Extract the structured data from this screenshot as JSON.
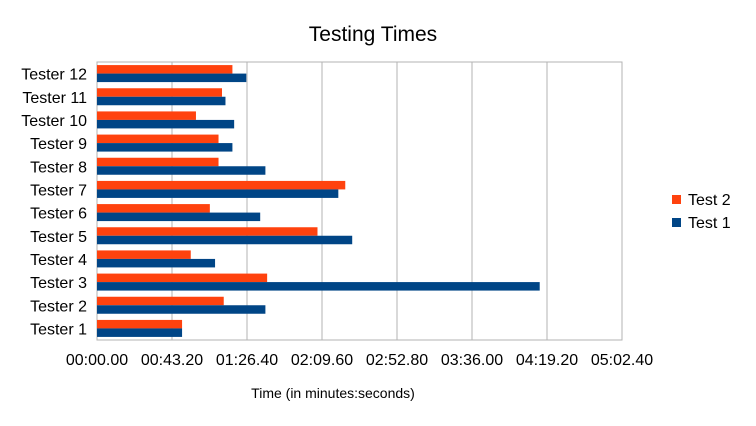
{
  "chart_data": {
    "type": "bar",
    "orientation": "horizontal",
    "title": "Testing Times",
    "xlabel": "Time (in minutes:seconds)",
    "ylabel": "",
    "xlim": [
      0,
      302.4
    ],
    "x_tick_labels": [
      "00:00.00",
      "00:43.20",
      "01:26.40",
      "02:09.60",
      "02:52.80",
      "03:36.00",
      "04:19.20",
      "05:02.40"
    ],
    "categories": [
      "Tester 1",
      "Tester 2",
      "Tester 3",
      "Tester 4",
      "Tester 5",
      "Tester 6",
      "Tester 7",
      "Tester 8",
      "Tester 9",
      "Tester 10",
      "Tester 11",
      "Tester 12"
    ],
    "series": [
      {
        "name": "Test 2",
        "color": "#ff420e",
        "values": [
          49,
          73,
          98,
          54,
          127,
          65,
          143,
          70,
          70,
          57,
          72,
          78
        ]
      },
      {
        "name": "Test 1",
        "color": "#004586",
        "values": [
          49,
          97,
          255,
          68,
          147,
          94,
          139,
          97,
          78,
          79,
          74,
          86
        ]
      }
    ],
    "legend_position": "right",
    "grid": true
  }
}
